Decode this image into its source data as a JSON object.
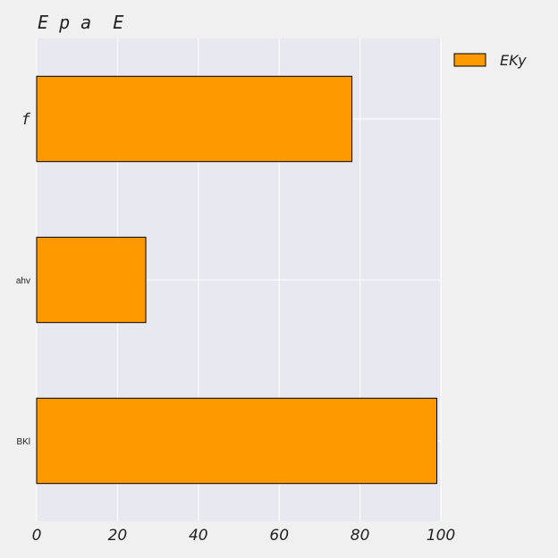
{
  "chart_data": {
    "type": "bar",
    "orientation": "horizontal",
    "title": "E p a  E",
    "categories": [
      "f",
      "ahv",
      "BKl"
    ],
    "series": [
      {
        "name": "EKy",
        "values": [
          78,
          27,
          99
        ],
        "color": "#ff9900"
      }
    ],
    "xlim": [
      0,
      100
    ],
    "xticks": [
      "0",
      "20",
      "40",
      "60",
      "80",
      "100"
    ],
    "grid": true,
    "legend_position": "top-right",
    "background_color": "#e8e8f0",
    "page_color": "#f0f0f0"
  }
}
